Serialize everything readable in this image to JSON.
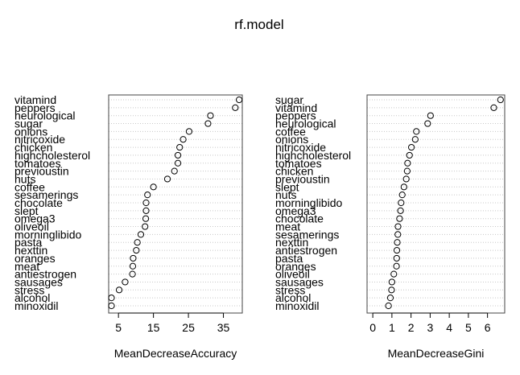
{
  "title": "rf.model",
  "chart_data": [
    {
      "type": "scatter",
      "xlabel": "MeanDecreaseAccuracy",
      "xlim": [
        2.2,
        40.4
      ],
      "xticks": [
        5,
        15,
        25,
        35
      ],
      "grid": "dotted-horizontal",
      "labels": [
        "vitamind",
        "peppers",
        "neurological",
        "sugar",
        "onions",
        "nitricoxide",
        "chicken",
        "highcholesterol",
        "tomatoes",
        "previoustin",
        "nuts",
        "coffee",
        "sesamerings",
        "chocolate",
        "slept",
        "omega3",
        "oliveoil",
        "morninglibido",
        "pasta",
        "nexttin",
        "oranges",
        "meat",
        "antiestrogen",
        "sausages",
        "stress",
        "alcohol",
        "minoxidil"
      ],
      "values": [
        39.5,
        38.4,
        31.3,
        30.6,
        25.2,
        23.5,
        22.5,
        22.0,
        22.0,
        21.0,
        19.0,
        15.0,
        13.3,
        12.9,
        12.9,
        12.8,
        12.6,
        11.4,
        10.4,
        10.1,
        9.2,
        9.1,
        9.0,
        6.9,
        5.2,
        3.0,
        3.0
      ]
    },
    {
      "type": "scatter",
      "xlabel": "MeanDecreaseGini",
      "xlim": [
        -0.3,
        6.9
      ],
      "xticks": [
        0,
        1,
        2,
        3,
        4,
        5,
        6
      ],
      "grid": "dotted-horizontal",
      "labels": [
        "sugar",
        "vitamind",
        "peppers",
        "neurological",
        "coffee",
        "onions",
        "nitricoxide",
        "highcholesterol",
        "tomatoes",
        "chicken",
        "previoustin",
        "slept",
        "nuts",
        "morninglibido",
        "omega3",
        "chocolate",
        "meat",
        "sesamerings",
        "nexttin",
        "antiestrogen",
        "pasta",
        "oranges",
        "oliveoil",
        "sausages",
        "stress",
        "alcohol",
        "minoxidil"
      ],
      "values": [
        6.68,
        6.33,
        3.02,
        2.87,
        2.28,
        2.22,
        2.02,
        1.92,
        1.82,
        1.8,
        1.75,
        1.63,
        1.54,
        1.48,
        1.45,
        1.4,
        1.32,
        1.31,
        1.28,
        1.26,
        1.25,
        1.24,
        1.1,
        1.0,
        0.98,
        0.92,
        0.82
      ]
    }
  ]
}
